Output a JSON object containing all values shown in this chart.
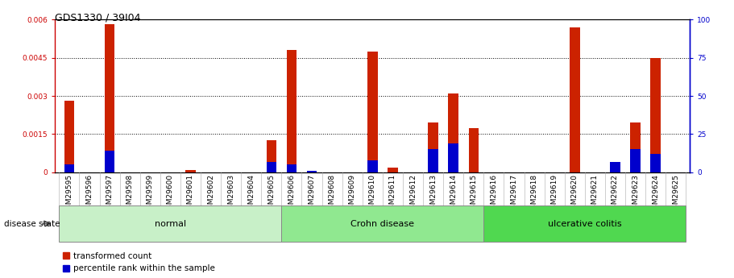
{
  "title": "GDS1330 / 39I04",
  "samples": [
    "GSM29595",
    "GSM29596",
    "GSM29597",
    "GSM29598",
    "GSM29599",
    "GSM29600",
    "GSM29601",
    "GSM29602",
    "GSM29603",
    "GSM29604",
    "GSM29605",
    "GSM29606",
    "GSM29607",
    "GSM29608",
    "GSM29609",
    "GSM29610",
    "GSM29611",
    "GSM29612",
    "GSM29613",
    "GSM29614",
    "GSM29615",
    "GSM29616",
    "GSM29617",
    "GSM29618",
    "GSM29619",
    "GSM29620",
    "GSM29621",
    "GSM29622",
    "GSM29623",
    "GSM29624",
    "GSM29625"
  ],
  "transformed_count": [
    0.0028,
    0.0,
    0.0058,
    0.0,
    0.0,
    0.0,
    9e-05,
    0.0,
    0.0,
    0.0,
    0.00125,
    0.0048,
    0.0,
    0.0,
    0.0,
    0.00475,
    0.00018,
    0.0,
    0.00195,
    0.0031,
    0.00175,
    0.0,
    0.0,
    0.0,
    0.0,
    0.0057,
    0.0,
    0.0,
    0.00195,
    0.0045,
    0.0
  ],
  "percentile_rank": [
    5,
    0,
    14,
    0,
    0,
    0,
    0,
    0,
    0,
    0,
    7,
    5,
    1,
    0,
    0,
    8,
    0,
    0,
    15,
    19,
    0,
    0,
    0,
    0,
    0,
    0,
    0,
    7,
    15,
    12,
    0
  ],
  "groups": [
    {
      "label": "normal",
      "start": 0,
      "end": 10,
      "color": "#c8f0c8"
    },
    {
      "label": "Crohn disease",
      "start": 11,
      "end": 20,
      "color": "#90e890"
    },
    {
      "label": "ulcerative colitis",
      "start": 21,
      "end": 30,
      "color": "#50d850"
    }
  ],
  "ylim_left": [
    0,
    0.006
  ],
  "ylim_right": [
    0,
    100
  ],
  "yticks_left": [
    0,
    0.0015,
    0.003,
    0.0045,
    0.006
  ],
  "yticks_left_labels": [
    "0",
    "0.0015",
    "0.003",
    "0.0045",
    "0.006"
  ],
  "yticks_right": [
    0,
    25,
    50,
    75,
    100
  ],
  "yticks_right_labels": [
    "0",
    "25",
    "50",
    "75",
    "100"
  ],
  "left_axis_color": "#cc0000",
  "right_axis_color": "#0000cc",
  "bar_color_red": "#cc2200",
  "bar_color_blue": "#0000cc",
  "grid_color": "#000000",
  "bg_color": "#ffffff",
  "xtick_bg_color": "#d0d0d0",
  "title_fontsize": 9,
  "tick_fontsize": 6.5,
  "legend_fontsize": 7.5,
  "group_label_fontsize": 8,
  "disease_state_fontsize": 7.5,
  "bar_width": 0.5
}
